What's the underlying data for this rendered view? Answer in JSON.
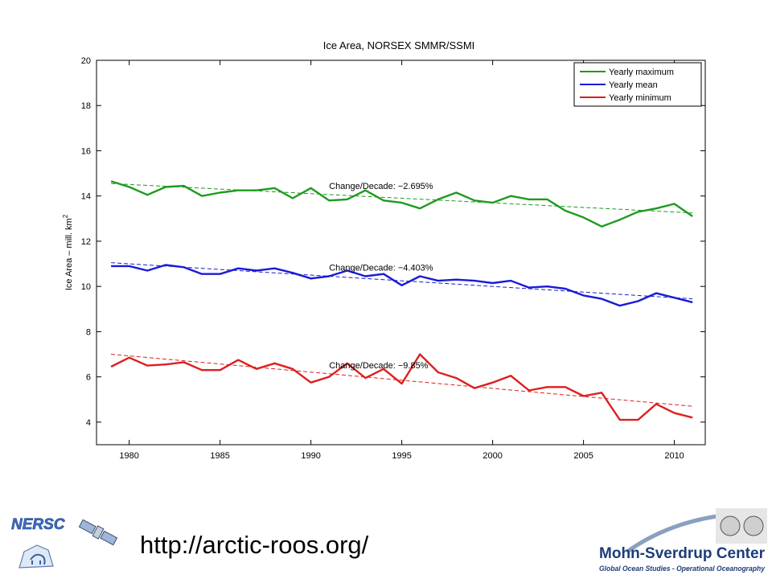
{
  "chart_data": {
    "type": "line",
    "title": "Ice Area, NORSEX SMMR/SSMI",
    "xlabel": "",
    "ylabel": "Ice Area – mill. km",
    "ylabel_superscript": "2",
    "xlim": [
      1978.2,
      2011.7
    ],
    "ylim": [
      3,
      20
    ],
    "xticks": [
      1980,
      1985,
      1990,
      1995,
      2000,
      2005,
      2010
    ],
    "yticks": [
      4,
      6,
      8,
      10,
      12,
      14,
      16,
      18,
      20
    ],
    "grid": false,
    "legend_position": "top-right",
    "x": [
      1979,
      1980,
      1981,
      1982,
      1983,
      1984,
      1985,
      1986,
      1987,
      1988,
      1989,
      1990,
      1991,
      1992,
      1993,
      1994,
      1995,
      1996,
      1997,
      1998,
      1999,
      2000,
      2001,
      2002,
      2003,
      2004,
      2005,
      2006,
      2007,
      2008,
      2009,
      2010,
      2011
    ],
    "series": [
      {
        "name": "Yearly maximum",
        "color": "#1f9a1f",
        "values": [
          14.65,
          14.4,
          14.05,
          14.4,
          14.45,
          14.0,
          14.15,
          14.25,
          14.25,
          14.35,
          13.9,
          14.35,
          13.8,
          13.85,
          14.25,
          13.8,
          13.7,
          13.45,
          13.85,
          14.15,
          13.8,
          13.7,
          14.0,
          13.85,
          13.85,
          13.35,
          13.05,
          12.65,
          12.95,
          13.3,
          13.45,
          13.65,
          13.1
        ],
        "trend": {
          "from": [
            1979,
            14.55
          ],
          "to": [
            2011,
            13.25
          ]
        },
        "trend_label": "Change/Decade: −2.695%"
      },
      {
        "name": "Yearly mean",
        "color": "#1a1ad8",
        "values": [
          10.9,
          10.9,
          10.7,
          10.95,
          10.85,
          10.55,
          10.55,
          10.8,
          10.7,
          10.8,
          10.6,
          10.35,
          10.45,
          10.7,
          10.45,
          10.55,
          10.05,
          10.45,
          10.25,
          10.3,
          10.25,
          10.15,
          10.25,
          9.95,
          10.0,
          9.9,
          9.6,
          9.45,
          9.15,
          9.35,
          9.7,
          9.5,
          9.3
        ],
        "trend": {
          "from": [
            1979,
            11.05
          ],
          "to": [
            2011,
            9.45
          ]
        },
        "trend_label": "Change/Decade: −4.403%"
      },
      {
        "name": "Yearly minimum",
        "color": "#dd1f1f",
        "values": [
          6.45,
          6.85,
          6.5,
          6.55,
          6.65,
          6.3,
          6.3,
          6.75,
          6.35,
          6.6,
          6.35,
          5.75,
          6.0,
          6.6,
          5.95,
          6.35,
          5.7,
          7.0,
          6.2,
          5.95,
          5.5,
          5.75,
          6.05,
          5.4,
          5.55,
          5.55,
          5.15,
          5.3,
          4.1,
          4.1,
          4.8,
          4.4,
          4.2
        ],
        "trend": {
          "from": [
            1979,
            7.0
          ],
          "to": [
            2011,
            4.7
          ]
        },
        "trend_label": "Change/Decade: −9.85%"
      }
    ]
  },
  "footer": {
    "url": "http://arctic-roos.org/",
    "left_logo_text": "NERSC",
    "right_logo_title": "Mohn-Sverdrup Center",
    "right_logo_subtitle": "Global Ocean Studies - Operational Oceanography"
  }
}
